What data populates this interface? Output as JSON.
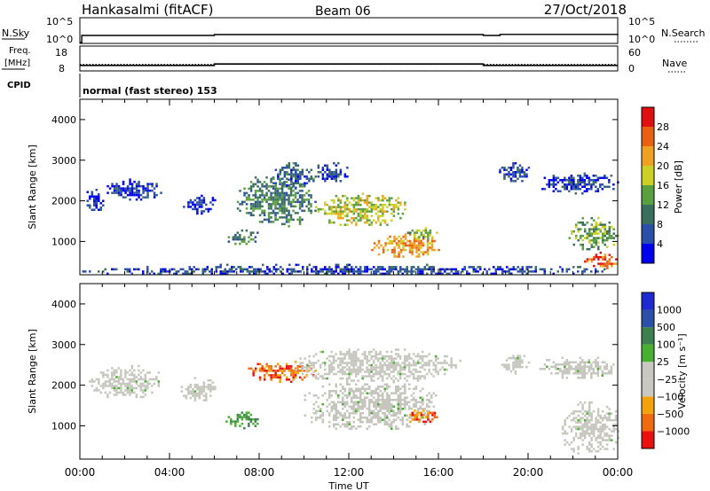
{
  "header": {
    "station": "Hankasalmi (fitACF)",
    "beam": "Beam 06",
    "date": "27/Oct/2018"
  },
  "strip_labels": {
    "nsky": "N.Sky",
    "nsky_top": "10^5",
    "nsky_bottom": "10^0",
    "nsearch": "N.Search",
    "nsearch_top": "10^5",
    "nsearch_bottom": "10^0",
    "freq": "Freq.",
    "freq_unit": "[MHz]",
    "freq_top": "18",
    "freq_bottom": "8",
    "nave": "Nave",
    "nave_top": "60",
    "nave_bottom": "0",
    "cpid": "CPID",
    "cpid_value": "normal (fast stereo) 153"
  },
  "colors": {
    "power": [
      "#0000ee",
      "#2a4fa8",
      "#3c6e5e",
      "#5aa040",
      "#cdd024",
      "#f0a020",
      "#e86010",
      "#e01010"
    ],
    "velocity": [
      "#e81010",
      "#f06a10",
      "#f4a20c",
      "#c8c8c0",
      "#c8c8c0",
      "#48b030",
      "#3c8050",
      "#2e4fa8",
      "#1c2ad0"
    ],
    "velocity_gray": "#c6c6be"
  },
  "chart_data": [
    {
      "type": "line",
      "panel": "N.Sky / N.Search",
      "x": [
        "00:00",
        "00:05",
        "06:00",
        "18:00",
        "18:45",
        "24:00"
      ],
      "series": [
        {
          "name": "N.Sky",
          "values": [
            1,
            35,
            55,
            35,
            60,
            40
          ]
        },
        {
          "name": "N.Search",
          "values": [
            0,
            0,
            0,
            0,
            0,
            0
          ]
        }
      ]
    },
    {
      "type": "line",
      "panel": "Freq. / Nave",
      "x": [
        "00:00",
        "06:00",
        "18:00",
        "24:00"
      ],
      "series": [
        {
          "name": "Freq.",
          "values": [
            10.4,
            11.0,
            10.4,
            10.4
          ]
        },
        {
          "name": "Nave",
          "values": [
            17,
            17,
            17,
            17
          ]
        }
      ]
    },
    {
      "type": "heatmap",
      "panel": "power",
      "xlabel": "",
      "ylabel": "Slant Range [km]",
      "x_ticks": [
        "00:00",
        "04:00",
        "08:00",
        "12:00",
        "16:00",
        "20:00",
        "00:00"
      ],
      "y_ticks": [
        "1000",
        "2000",
        "3000",
        "4000"
      ],
      "xlim_hours": [
        0,
        24
      ],
      "ylim_km": [
        180,
        4500
      ],
      "colorbar": {
        "label": "Power [dB]",
        "ticks": [
          "4",
          "8",
          "12",
          "16",
          "20",
          "24",
          "28"
        ]
      },
      "regions": [
        {
          "t0": 0.2,
          "t1": 1.0,
          "r0": 1700,
          "r1": 2350,
          "level": 4
        },
        {
          "t0": 1.0,
          "t1": 3.7,
          "r0": 2050,
          "r1": 2550,
          "level": 5
        },
        {
          "t0": 4.5,
          "t1": 6.0,
          "r0": 1700,
          "r1": 2150,
          "level": 3
        },
        {
          "t0": 6.5,
          "t1": 8.0,
          "r0": 950,
          "r1": 1350,
          "level": 9
        },
        {
          "t0": 7.0,
          "t1": 10.5,
          "r0": 1400,
          "r1": 2600,
          "level": 11
        },
        {
          "t0": 8.5,
          "t1": 10.5,
          "r0": 2300,
          "r1": 2950,
          "level": 8
        },
        {
          "t0": 10.5,
          "t1": 14.5,
          "r0": 1400,
          "r1": 2200,
          "level": 17
        },
        {
          "t0": 10.5,
          "t1": 12.0,
          "r0": 2500,
          "r1": 2950,
          "level": 6
        },
        {
          "t0": 13.0,
          "t1": 16.0,
          "r0": 650,
          "r1": 1200,
          "level": 22
        },
        {
          "t0": 14.5,
          "t1": 16.0,
          "r0": 1050,
          "r1": 1350,
          "level": 15
        },
        {
          "t0": 18.7,
          "t1": 20.0,
          "r0": 2500,
          "r1": 2950,
          "level": 6
        },
        {
          "t0": 20.5,
          "t1": 24.0,
          "r0": 2200,
          "r1": 2700,
          "level": 5
        },
        {
          "t0": 21.8,
          "t1": 24.0,
          "r0": 800,
          "r1": 1600,
          "level": 13
        },
        {
          "t0": 22.5,
          "t1": 24.0,
          "r0": 350,
          "r1": 750,
          "level": 27
        },
        {
          "t0": 0.0,
          "t1": 24.0,
          "r0": 180,
          "r1": 450,
          "level": 6
        }
      ]
    },
    {
      "type": "heatmap",
      "panel": "velocity",
      "xlabel": "Time UT",
      "ylabel": "Slant Range [km]",
      "x_ticks": [
        "00:00",
        "04:00",
        "08:00",
        "12:00",
        "16:00",
        "20:00",
        "00:00"
      ],
      "y_ticks": [
        "1000",
        "2000",
        "3000",
        "4000"
      ],
      "xlim_hours": [
        0,
        24
      ],
      "ylim_km": [
        180,
        4500
      ],
      "colorbar": {
        "label": "Velocity [m s⁻¹]",
        "ticks": [
          "1000",
          "500",
          "100",
          "25",
          "−25",
          "−100",
          "−500",
          "−1000"
        ]
      },
      "regions": [
        {
          "t0": 0.3,
          "t1": 3.5,
          "r0": 1700,
          "r1": 2500,
          "level": 0
        },
        {
          "t0": 4.5,
          "t1": 6.0,
          "r0": 1600,
          "r1": 2200,
          "level": 0
        },
        {
          "t0": 6.5,
          "t1": 8.0,
          "r0": 950,
          "r1": 1350,
          "level": 60
        },
        {
          "t0": 7.5,
          "t1": 10.5,
          "r0": 2100,
          "r1": 2600,
          "level": -300
        },
        {
          "t0": 10.0,
          "t1": 16.0,
          "r0": 900,
          "r1": 2100,
          "level": 0
        },
        {
          "t0": 9.5,
          "t1": 17.0,
          "r0": 2100,
          "r1": 2900,
          "level": 0
        },
        {
          "t0": 14.5,
          "t1": 16.0,
          "r0": 1100,
          "r1": 1400,
          "level": -80
        },
        {
          "t0": 18.8,
          "t1": 20.0,
          "r0": 2300,
          "r1": 2800,
          "level": 0
        },
        {
          "t0": 20.5,
          "t1": 24.0,
          "r0": 2200,
          "r1": 2700,
          "level": 0
        },
        {
          "t0": 21.5,
          "t1": 24.0,
          "r0": 300,
          "r1": 1600,
          "level": 0
        }
      ]
    }
  ]
}
